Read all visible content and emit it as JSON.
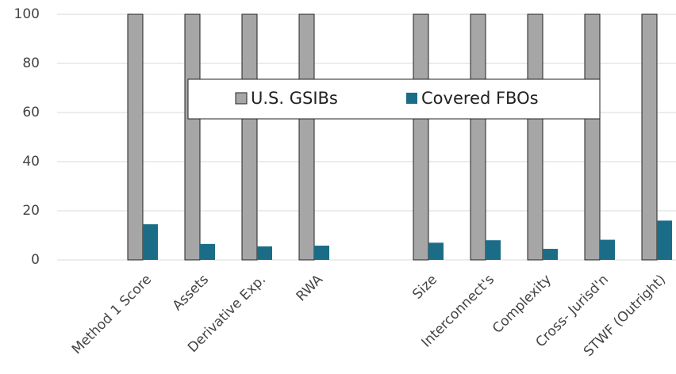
{
  "chart_data": {
    "type": "bar",
    "categories": [
      null,
      "Method 1 Score",
      "Assets",
      "Derivative Exp.",
      "RWA",
      null,
      "Size",
      "Interconnect's",
      "Complexity",
      "Cross- Jurisd'n",
      "STWF (Outright)"
    ],
    "series": [
      {
        "name": "U.S. GSIBs",
        "color": "#a6a6a6",
        "values": [
          null,
          100,
          100,
          100,
          100,
          null,
          100,
          100,
          100,
          100,
          100
        ]
      },
      {
        "name": "Covered FBOs",
        "color": "#1b6d87",
        "values": [
          null,
          14.5,
          6.5,
          5.5,
          5.8,
          null,
          7,
          8,
          4.5,
          8.2,
          16
        ]
      }
    ],
    "ylim": [
      0,
      100
    ],
    "yticks": [
      0,
      20,
      40,
      60,
      80,
      100
    ],
    "grid": true
  }
}
